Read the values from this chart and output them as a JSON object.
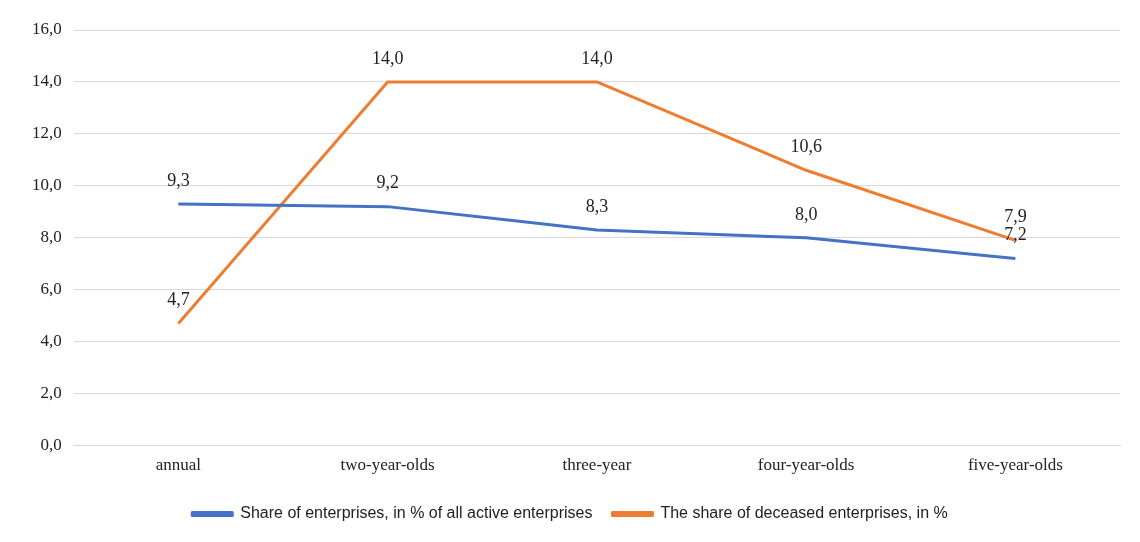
{
  "chart_data": {
    "type": "line",
    "categories": [
      "annual",
      "two-year-olds",
      "three-year",
      "four-year-olds",
      "five-year-olds"
    ],
    "series": [
      {
        "name": "Share of enterprises, in % of all active enterprises",
        "color": "#4472c4",
        "values": [
          9.3,
          9.2,
          8.3,
          8.0,
          7.2
        ],
        "value_labels": [
          "9,3",
          "9,2",
          "8,3",
          "8,0",
          "7,2"
        ]
      },
      {
        "name": "The share of deceased enterprises, in %",
        "color": "#ed7d31",
        "values": [
          4.7,
          14.0,
          14.0,
          10.6,
          7.9
        ],
        "value_labels": [
          "4,7",
          "14,0",
          "14,0",
          "10,6",
          "7,9"
        ]
      }
    ],
    "ylim": [
      0,
      16
    ],
    "yticks": [
      {
        "value": 0,
        "label": "0,0"
      },
      {
        "value": 2,
        "label": "2,0"
      },
      {
        "value": 4,
        "label": "4,0"
      },
      {
        "value": 6,
        "label": "6,0"
      },
      {
        "value": 8,
        "label": "8,0"
      },
      {
        "value": 10,
        "label": "10,0"
      },
      {
        "value": 12,
        "label": "12,0"
      },
      {
        "value": 14,
        "label": "14,0"
      },
      {
        "value": 16,
        "label": "16,0"
      }
    ],
    "grid": "y",
    "legend": "bottom",
    "marker": "none",
    "line_style": "solid"
  }
}
